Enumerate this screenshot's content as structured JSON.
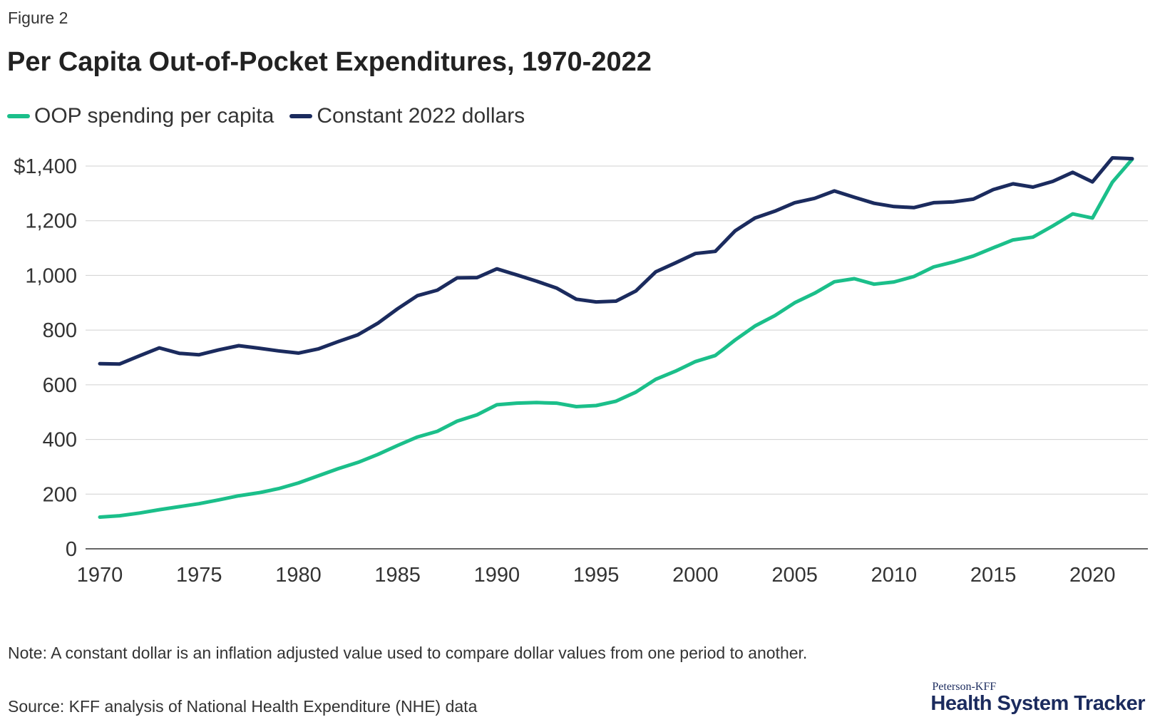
{
  "figure_label": "Figure 2",
  "title": "Per Capita Out-of-Pocket Expenditures, 1970-2022",
  "legend": [
    {
      "label": "OOP spending per capita",
      "color": "#1bbf8a"
    },
    {
      "label": "Constant 2022 dollars",
      "color": "#1b2b5e"
    }
  ],
  "note": "Note: A constant dollar is an inflation adjusted value used to compare dollar values from one period to another.",
  "source": "Source: KFF analysis of National Health Expenditure (NHE) data",
  "brand": {
    "small": "Peterson-KFF",
    "big": "Health System Tracker"
  },
  "chart_data": {
    "type": "line",
    "title": "Per Capita Out-of-Pocket Expenditures, 1970-2022",
    "xlabel": "",
    "ylabel": "",
    "xlim": [
      1970,
      2022
    ],
    "ylim": [
      0,
      1400
    ],
    "grid": "horizontal",
    "legend_position": "top-left",
    "x_ticks": [
      1970,
      1975,
      1980,
      1985,
      1990,
      1995,
      2000,
      2005,
      2010,
      2015,
      2020
    ],
    "y_ticks": [
      {
        "value": 0,
        "label": "0"
      },
      {
        "value": 200,
        "label": "200"
      },
      {
        "value": 400,
        "label": "400"
      },
      {
        "value": 600,
        "label": "600"
      },
      {
        "value": 800,
        "label": "800"
      },
      {
        "value": 1000,
        "label": "1,000"
      },
      {
        "value": 1200,
        "label": "1,200"
      },
      {
        "value": 1400,
        "label": "$1,400"
      }
    ],
    "x": [
      1970,
      1971,
      1972,
      1973,
      1974,
      1975,
      1976,
      1977,
      1978,
      1979,
      1980,
      1981,
      1982,
      1983,
      1984,
      1985,
      1986,
      1987,
      1988,
      1989,
      1990,
      1991,
      1992,
      1993,
      1994,
      1995,
      1996,
      1997,
      1998,
      1999,
      2000,
      2001,
      2002,
      2003,
      2004,
      2005,
      2006,
      2007,
      2008,
      2009,
      2010,
      2011,
      2012,
      2013,
      2014,
      2015,
      2016,
      2017,
      2018,
      2019,
      2020,
      2021,
      2022
    ],
    "series": [
      {
        "name": "OOP spending per capita",
        "color": "#1bbf8a",
        "values": [
          116,
          121,
          131,
          143,
          154,
          165,
          179,
          194,
          205,
          220,
          241,
          267,
          293,
          316,
          345,
          378,
          409,
          430,
          467,
          490,
          527,
          533,
          535,
          533,
          520,
          524,
          540,
          573,
          620,
          650,
          685,
          707,
          764,
          815,
          853,
          900,
          935,
          977,
          988,
          968,
          976,
          996,
          1031,
          1049,
          1071,
          1101,
          1130,
          1140,
          1181,
          1225,
          1210,
          1341,
          1425
        ]
      },
      {
        "name": "Constant 2022 dollars",
        "color": "#1b2b5e",
        "values": [
          677,
          676,
          706,
          735,
          715,
          710,
          728,
          743,
          734,
          724,
          716,
          731,
          758,
          783,
          825,
          878,
          926,
          946,
          991,
          992,
          1024,
          1002,
          979,
          954,
          913,
          903,
          906,
          943,
          1013,
          1046,
          1080,
          1088,
          1163,
          1210,
          1235,
          1266,
          1282,
          1309,
          1286,
          1264,
          1252,
          1248,
          1266,
          1269,
          1279,
          1314,
          1335,
          1323,
          1344,
          1377,
          1342,
          1430,
          1427
        ]
      }
    ]
  }
}
